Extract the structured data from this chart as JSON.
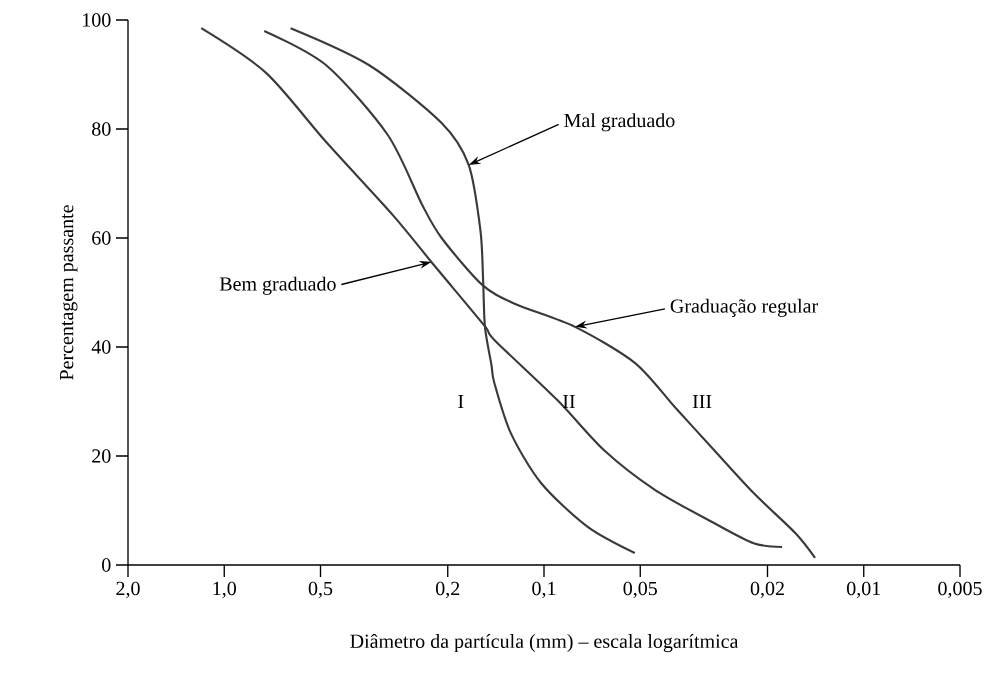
{
  "chart_data": {
    "type": "line",
    "xlabel": "Diâmetro da partícula (mm) – escala logarítmica",
    "ylabel": "Percentagem passante",
    "log": "x",
    "marker": "none",
    "line_style": "solid",
    "xlim": [
      2,
      0.005
    ],
    "ylim": [
      0,
      100
    ],
    "xticks": [
      {
        "value": 2,
        "label": "2,0"
      },
      {
        "value": 1,
        "label": "1,0"
      },
      {
        "value": 0.5,
        "label": "0,5"
      },
      {
        "value": 0.2,
        "label": "0,2"
      },
      {
        "value": 0.1,
        "label": "0,1"
      },
      {
        "value": 0.05,
        "label": "0,05"
      },
      {
        "value": 0.02,
        "label": "0,02"
      },
      {
        "value": 0.01,
        "label": "0,01"
      },
      {
        "value": 0.005,
        "label": "0,005"
      }
    ],
    "yticks": [
      0,
      20,
      40,
      60,
      80,
      100
    ],
    "series": [
      {
        "color": "#3a3a3a",
        "x": [
          0.62,
          0.352,
          0.209,
          0.172,
          0.158,
          0.155,
          0.153,
          0.146,
          0.143,
          0.127,
          0.102,
          0.073,
          0.052
        ],
        "values": [
          98.5,
          91.7,
          81.1,
          73.4,
          61.3,
          52.1,
          43.7,
          36.7,
          33.4,
          24.2,
          15.0,
          7.0,
          2.2
        ]
      },
      {
        "color": "#3a3a3a",
        "x": [
          1.18,
          0.74,
          0.48,
          0.297,
          0.225,
          0.154,
          0.143,
          0.091,
          0.065,
          0.045,
          0.0294,
          0.0221,
          0.018
        ],
        "values": [
          98.5,
          90.3,
          77.6,
          64.2,
          55.6,
          44.0,
          41.3,
          30.3,
          21.1,
          13.8,
          7.7,
          4.0,
          3.3
        ]
      },
      {
        "color": "#3a3a3a",
        "x": [
          0.75,
          0.48,
          0.308,
          0.241,
          0.209,
          0.156,
          0.123,
          0.08,
          0.052,
          0.039,
          0.0294,
          0.0221,
          0.0164,
          0.0142
        ],
        "values": [
          98.0,
          91.7,
          78.9,
          66.2,
          60.0,
          51.4,
          47.9,
          43.7,
          37.1,
          29.0,
          21.1,
          13.2,
          5.9,
          1.3
        ]
      }
    ],
    "annotations": [
      {
        "text": "Mal graduado",
        "x": 0.172,
        "y": 73.4
      },
      {
        "text": "Bem graduado",
        "x": 0.225,
        "y": 55.6
      },
      {
        "text": "Graduação regular",
        "x": 0.08,
        "y": 43.7
      },
      "I",
      "II",
      "III"
    ]
  }
}
